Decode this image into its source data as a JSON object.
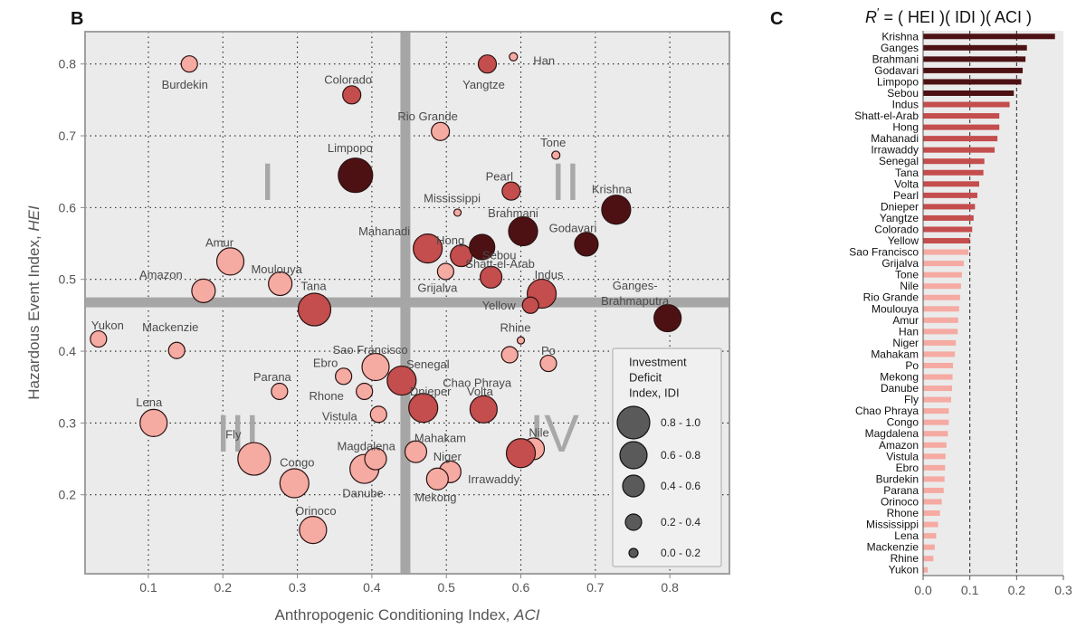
{
  "chart_data": [
    {
      "type": "scatter",
      "panel": "B",
      "xlabel_prefix": "Anthropogenic Conditioning Index, ",
      "xlabel_var": "ACI",
      "ylabel_prefix": "Hazardous Event Index, ",
      "ylabel_var": "HEI",
      "xlim": [
        0.015,
        0.88
      ],
      "ylim": [
        0.09,
        0.845
      ],
      "xticks": [
        0.1,
        0.2,
        0.3,
        0.4,
        0.5,
        0.6,
        0.7,
        0.8
      ],
      "yticks": [
        0.2,
        0.3,
        0.4,
        0.5,
        0.6,
        0.7,
        0.8
      ],
      "xtick_labels": [
        "0.1",
        "0.2",
        "0.3",
        "0.4",
        "0.5",
        "0.6",
        "0.7",
        "0.8"
      ],
      "ytick_labels": [
        "0.2",
        "0.3",
        "0.4",
        "0.5",
        "0.6",
        "0.7",
        "0.8"
      ],
      "threshold_x": 0.445,
      "threshold_y": 0.468,
      "quadrant_labels": [
        {
          "text": "I",
          "x": 0.26,
          "y": 0.635
        },
        {
          "text": "II",
          "x": 0.66,
          "y": 0.635
        },
        {
          "text": "III",
          "x": 0.22,
          "y": 0.285
        },
        {
          "text": "IV",
          "x": 0.645,
          "y": 0.285
        }
      ],
      "legend": {
        "title": [
          "Investment",
          "Deficit",
          "Index,   IDI"
        ],
        "bins": [
          "0.8 - 1.0",
          "0.6 - 0.8",
          "0.4 - 0.6",
          "0.2 - 0.4",
          "0.0 - 0.2"
        ],
        "radii": [
          18,
          15,
          12,
          9,
          5
        ]
      },
      "colors": {
        "light": "#f5aaa2",
        "medium": "#c44d4d",
        "dark": "#4d1114",
        "outline": "#2a1212",
        "plot_bg": "#ebebeb",
        "threshold": "#a6a6a6",
        "quadrant_text": "#a8a8a8"
      },
      "points": [
        {
          "name": "Burdekin",
          "x": 0.155,
          "y": 0.8,
          "r": 9,
          "c": "light",
          "lx": -5,
          "ly": 23,
          "anchor": "middle"
        },
        {
          "name": "Han",
          "x": 0.59,
          "y": 0.81,
          "r": 4.5,
          "c": "light",
          "lx": 22,
          "ly": 4,
          "anchor": "start"
        },
        {
          "name": "Yangtze",
          "x": 0.555,
          "y": 0.8,
          "r": 10,
          "c": "medium",
          "lx": -4,
          "ly": 23,
          "anchor": "middle"
        },
        {
          "name": "Colorado",
          "x": 0.373,
          "y": 0.757,
          "r": 10,
          "c": "medium",
          "lx": -4,
          "ly": -17,
          "anchor": "middle"
        },
        {
          "name": "Rio Grande",
          "x": 0.492,
          "y": 0.706,
          "r": 10,
          "c": "light",
          "lx": -14,
          "ly": -17,
          "anchor": "middle"
        },
        {
          "name": "Tone",
          "x": 0.647,
          "y": 0.673,
          "r": 4.5,
          "c": "light",
          "lx": -3,
          "ly": -14,
          "anchor": "middle"
        },
        {
          "name": "Limpopo",
          "x": 0.378,
          "y": 0.645,
          "r": 19,
          "c": "dark",
          "lx": -6,
          "ly": -30,
          "anchor": "middle"
        },
        {
          "name": "Pearl",
          "x": 0.587,
          "y": 0.623,
          "r": 10,
          "c": "medium",
          "lx": -13,
          "ly": -16,
          "anchor": "middle"
        },
        {
          "name": "Mississippi",
          "x": 0.515,
          "y": 0.593,
          "r": 4,
          "c": "light",
          "lx": -6,
          "ly": -16,
          "anchor": "middle"
        },
        {
          "name": "Krishna",
          "x": 0.728,
          "y": 0.597,
          "r": 16,
          "c": "dark",
          "lx": -5,
          "ly": -23,
          "anchor": "middle"
        },
        {
          "name": "Brahmani",
          "x": 0.603,
          "y": 0.567,
          "r": 16,
          "c": "dark",
          "lx": -11,
          "ly": -20,
          "anchor": "middle"
        },
        {
          "name": "Godavari",
          "x": 0.688,
          "y": 0.549,
          "r": 13,
          "c": "dark",
          "lx": -15,
          "ly": -18,
          "anchor": "middle"
        },
        {
          "name": "Mahanadi",
          "x": 0.475,
          "y": 0.543,
          "r": 16,
          "c": "medium",
          "lx": -48,
          "ly": -19,
          "anchor": "middle"
        },
        {
          "name": "Hong",
          "x": 0.52,
          "y": 0.533,
          "r": 12,
          "c": "medium",
          "lx": -12,
          "ly": -17,
          "anchor": "middle"
        },
        {
          "name": "Sebou",
          "x": 0.548,
          "y": 0.545,
          "r": 14,
          "c": "dark",
          "lx": 19,
          "ly": 9,
          "anchor": "middle"
        },
        {
          "name": "Shatt-el-Arab",
          "x": 0.56,
          "y": 0.503,
          "r": 12,
          "c": "medium",
          "lx": 10,
          "ly": -15,
          "anchor": "middle"
        },
        {
          "name": "Amur",
          "x": 0.21,
          "y": 0.525,
          "r": 15,
          "c": "light",
          "lx": -12,
          "ly": -21,
          "anchor": "middle"
        },
        {
          "name": "Moulouya",
          "x": 0.277,
          "y": 0.494,
          "r": 13,
          "c": "light",
          "lx": -4,
          "ly": -16,
          "anchor": "middle"
        },
        {
          "name": "Amazon",
          "x": 0.174,
          "y": 0.484,
          "r": 13,
          "c": "light",
          "lx": -47,
          "ly": -18,
          "anchor": "middle"
        },
        {
          "name": "Tana",
          "x": 0.323,
          "y": 0.458,
          "r": 18,
          "c": "medium",
          "lx": -1,
          "ly": -26,
          "anchor": "middle"
        },
        {
          "name": "Grijalva",
          "x": 0.499,
          "y": 0.511,
          "r": 9,
          "c": "light",
          "lx": -9,
          "ly": 18,
          "anchor": "middle"
        },
        {
          "name": "Indus",
          "x": 0.628,
          "y": 0.48,
          "r": 16,
          "c": "medium",
          "lx": 8,
          "ly": -21,
          "anchor": "middle"
        },
        {
          "name": "Yellow",
          "x": 0.613,
          "y": 0.464,
          "r": 9,
          "c": "medium",
          "lx": -35,
          "ly": 0,
          "anchor": "middle"
        },
        {
          "name": "Ganges-Brahmaputra",
          "x": 0.797,
          "y": 0.446,
          "r": 15,
          "c": "dark",
          "lx": -36,
          "ly": -36,
          "anchor": "middle",
          "lines": [
            "Ganges-",
            "Brahmaputra"
          ]
        },
        {
          "name": "Yukon",
          "x": 0.033,
          "y": 0.417,
          "r": 9,
          "c": "light",
          "lx": 10,
          "ly": -15,
          "anchor": "middle"
        },
        {
          "name": "Mackenzie",
          "x": 0.138,
          "y": 0.401,
          "r": 9,
          "c": "light",
          "lx": -7,
          "ly": -26,
          "anchor": "middle"
        },
        {
          "name": "Rhine",
          "x": 0.6,
          "y": 0.415,
          "r": 4,
          "c": "light",
          "lx": -6,
          "ly": -14,
          "anchor": "middle"
        },
        {
          "name": "Po",
          "x": 0.637,
          "y": 0.383,
          "r": 9,
          "c": "light",
          "lx": 0,
          "ly": -14,
          "anchor": "middle"
        },
        {
          "name": "Sao Francisco",
          "x": 0.405,
          "y": 0.378,
          "r": 15,
          "c": "light",
          "lx": -6,
          "ly": -19,
          "anchor": "middle"
        },
        {
          "name": "Senegal",
          "x": 0.44,
          "y": 0.359,
          "r": 16,
          "c": "medium",
          "lx": 29,
          "ly": -18,
          "anchor": "middle"
        },
        {
          "name": "Ebro",
          "x": 0.362,
          "y": 0.365,
          "r": 9,
          "c": "light",
          "lx": -20,
          "ly": -15,
          "anchor": "middle"
        },
        {
          "name": "Rhone",
          "x": 0.39,
          "y": 0.344,
          "r": 9,
          "c": "light",
          "lx": -42,
          "ly": 5,
          "anchor": "middle"
        },
        {
          "name": "Parana",
          "x": 0.276,
          "y": 0.344,
          "r": 9,
          "c": "light",
          "lx": -8,
          "ly": -16,
          "anchor": "middle"
        },
        {
          "name": "Chao Phraya",
          "x": 0.585,
          "y": 0.395,
          "r": 9,
          "c": "light",
          "lx": -36,
          "ly": 31,
          "anchor": "middle"
        },
        {
          "name": "Volta",
          "x": 0.55,
          "y": 0.319,
          "r": 15,
          "c": "medium",
          "lx": -4,
          "ly": -20,
          "anchor": "middle"
        },
        {
          "name": "Dnieper",
          "x": 0.469,
          "y": 0.321,
          "r": 16,
          "c": "medium",
          "lx": 8,
          "ly": -18,
          "anchor": "middle"
        },
        {
          "name": "Vistula",
          "x": 0.409,
          "y": 0.312,
          "r": 9,
          "c": "light",
          "lx": -43,
          "ly": 2,
          "anchor": "middle"
        },
        {
          "name": "Lena",
          "x": 0.107,
          "y": 0.3,
          "r": 15,
          "c": "light",
          "lx": -5,
          "ly": -23,
          "anchor": "middle"
        },
        {
          "name": "Nile",
          "x": 0.617,
          "y": 0.264,
          "r": 12,
          "c": "light",
          "lx": 6,
          "ly": -18,
          "anchor": "middle"
        },
        {
          "name": "Irrawaddy",
          "x": 0.6,
          "y": 0.258,
          "r": 16,
          "c": "medium",
          "lx": -30,
          "ly": 29,
          "anchor": "middle"
        },
        {
          "name": "Mahakam",
          "x": 0.459,
          "y": 0.26,
          "r": 12,
          "c": "light",
          "lx": 27,
          "ly": -15,
          "anchor": "middle"
        },
        {
          "name": "Magdalena",
          "x": 0.39,
          "y": 0.236,
          "r": 16,
          "c": "light",
          "lx": 2,
          "ly": -25,
          "anchor": "middle"
        },
        {
          "name": "Niger",
          "x": 0.505,
          "y": 0.232,
          "r": 12,
          "c": "light",
          "lx": -3,
          "ly": -17,
          "anchor": "middle"
        },
        {
          "name": "Fly",
          "x": 0.242,
          "y": 0.25,
          "r": 18,
          "c": "light",
          "lx": -23,
          "ly": -27,
          "anchor": "middle"
        },
        {
          "name": "Congo",
          "x": 0.296,
          "y": 0.216,
          "r": 16,
          "c": "light",
          "lx": 3,
          "ly": -23,
          "anchor": "middle"
        },
        {
          "name": "Danube",
          "x": 0.405,
          "y": 0.25,
          "r": 12,
          "c": "light",
          "lx": -14,
          "ly": 38,
          "anchor": "middle"
        },
        {
          "name": "Mekong",
          "x": 0.488,
          "y": 0.222,
          "r": 12,
          "c": "light",
          "lx": -2,
          "ly": 20,
          "anchor": "middle"
        },
        {
          "name": "Orinoco",
          "x": 0.321,
          "y": 0.151,
          "r": 15,
          "c": "light",
          "lx": 3,
          "ly": -21,
          "anchor": "middle"
        }
      ]
    },
    {
      "type": "bar",
      "orientation": "horizontal",
      "panel": "C",
      "title_parts": [
        "R",
        "′",
        "  = ( HEI )( IDI )( ACI )"
      ],
      "xlim": [
        0,
        0.3
      ],
      "xticks": [
        0.0,
        0.1,
        0.2,
        0.3
      ],
      "xtick_labels": [
        "0.0",
        "0.1",
        "0.2",
        "0.3"
      ],
      "reference_lines": [
        0.1,
        0.2
      ],
      "colors": {
        "light": "#f5aaa2",
        "medium": "#c44d4d",
        "dark": "#4d1114"
      },
      "categories": [
        "Krishna",
        "Ganges",
        "Brahmani",
        "Godavari",
        "Limpopo",
        "Sebou",
        "Indus",
        "Shatt-el-Arab",
        "Hong",
        "Mahanadi",
        "Irrawaddy",
        "Senegal",
        "Tana",
        "Volta",
        "Pearl",
        "Dnieper",
        "Yangtze",
        "Colorado",
        "Yellow",
        "Sao Francisco",
        "Grijalva",
        "Tone",
        "Nile",
        "Rio Grande",
        "Moulouya",
        "Amur",
        "Han",
        "Niger",
        "Mahakam",
        "Po",
        "Mekong",
        "Danube",
        "Fly",
        "Chao Phraya",
        "Congo",
        "Magdalena",
        "Amazon",
        "Vistula",
        "Ebro",
        "Burdekin",
        "Parana",
        "Orinoco",
        "Rhone",
        "Mississippi",
        "Lena",
        "Mackenzie",
        "Rhine",
        "Yukon"
      ],
      "values": [
        0.282,
        0.222,
        0.219,
        0.213,
        0.21,
        0.194,
        0.185,
        0.163,
        0.163,
        0.159,
        0.153,
        0.131,
        0.129,
        0.12,
        0.116,
        0.111,
        0.108,
        0.105,
        0.1,
        0.097,
        0.087,
        0.083,
        0.081,
        0.079,
        0.077,
        0.075,
        0.074,
        0.07,
        0.068,
        0.064,
        0.063,
        0.062,
        0.06,
        0.055,
        0.055,
        0.053,
        0.05,
        0.048,
        0.047,
        0.046,
        0.044,
        0.04,
        0.036,
        0.032,
        0.028,
        0.025,
        0.022,
        0.01
      ],
      "bar_colors": [
        "dark",
        "dark",
        "dark",
        "dark",
        "dark",
        "dark",
        "medium",
        "medium",
        "medium",
        "medium",
        "medium",
        "medium",
        "medium",
        "medium",
        "medium",
        "medium",
        "medium",
        "medium",
        "medium",
        "light",
        "light",
        "light",
        "light",
        "light",
        "light",
        "light",
        "light",
        "light",
        "light",
        "light",
        "light",
        "light",
        "light",
        "light",
        "light",
        "light",
        "light",
        "light",
        "light",
        "light",
        "light",
        "light",
        "light",
        "light",
        "light",
        "light",
        "light",
        "light"
      ]
    }
  ],
  "panels": {
    "b": "B",
    "c": "C"
  }
}
